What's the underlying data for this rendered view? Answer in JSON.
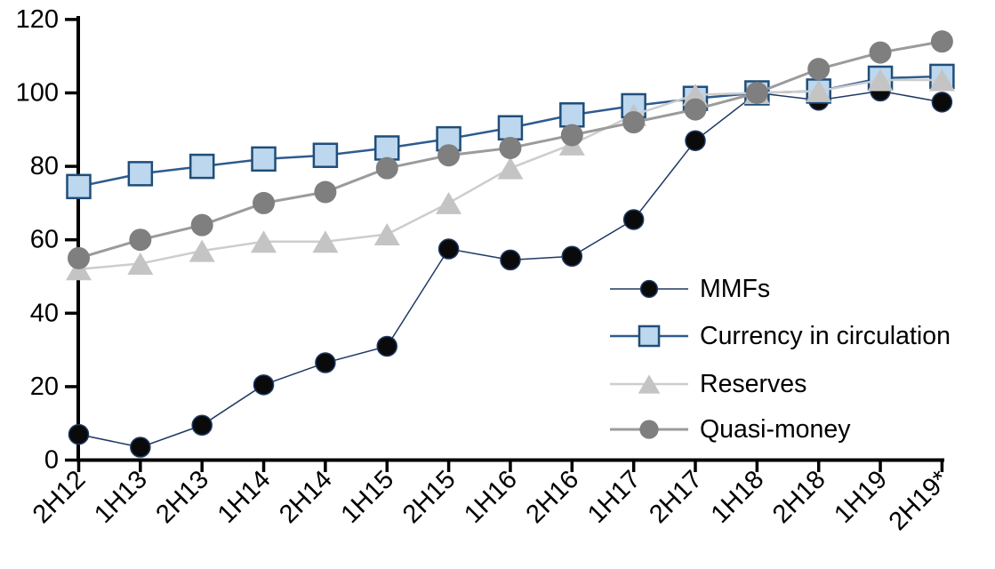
{
  "chart_data": {
    "type": "line",
    "title": "",
    "xlabel": "",
    "ylabel": "",
    "categories": [
      "2H12",
      "1H13",
      "2H13",
      "1H14",
      "2H14",
      "1H15",
      "2H15",
      "1H16",
      "2H16",
      "1H17",
      "2H17",
      "1H18",
      "2H18",
      "1H19",
      "2H19*"
    ],
    "series": [
      {
        "name": "MMFs",
        "marker": "circle",
        "values": [
          7,
          3.5,
          9.5,
          20.5,
          26.5,
          31,
          57.5,
          54.5,
          55.5,
          65.5,
          87,
          100,
          98,
          100.5,
          97.5
        ],
        "line_color": "#1F3864",
        "fill": "#0A0A0A",
        "marker_border": "#1F3864",
        "line_width": 1.5,
        "marker_size": 22
      },
      {
        "name": "Currency in circulation",
        "marker": "square",
        "values": [
          74.5,
          78,
          80,
          82,
          83,
          85,
          87.5,
          90.5,
          94,
          96.5,
          98.5,
          100,
          100.5,
          104,
          104.5
        ],
        "line_color": "#2E5B8F",
        "fill": "#BDD7EE",
        "marker_border": "#1F4E79",
        "line_width": 2.5,
        "marker_size": 26
      },
      {
        "name": "Reserves",
        "marker": "triangle",
        "values": [
          52,
          53.5,
          57,
          59.5,
          59.5,
          61.5,
          70,
          79.5,
          86,
          94,
          99.5,
          100,
          100.5,
          103.5,
          103.5
        ],
        "line_color": "#CDCDCD",
        "fill": "#C4C4C4",
        "marker_border": "",
        "line_width": 2.5,
        "marker_size": 25
      },
      {
        "name": "Quasi-money",
        "marker": "circle",
        "values": [
          55,
          60,
          64,
          70,
          73,
          79.5,
          83,
          85,
          88.5,
          92,
          95.5,
          100,
          106.5,
          111,
          114
        ],
        "line_color": "#9B9B9B",
        "fill": "#7F7F7F",
        "marker_border": "",
        "line_width": 3,
        "marker_size": 25
      }
    ],
    "ylim": [
      0,
      120
    ],
    "yticks": [
      0,
      20,
      40,
      60,
      80,
      100,
      120
    ],
    "grid": false,
    "legend_position": "inside-right",
    "legend_labels": [
      "MMFs",
      "Currency in circulation",
      "Reserves",
      "Quasi-money"
    ],
    "x_tick_rotation": 45,
    "axis_color": "#000000",
    "background_color": "#FFFFFF"
  }
}
